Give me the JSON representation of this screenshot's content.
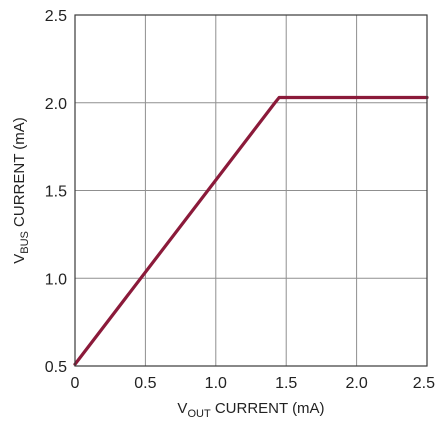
{
  "chart_data": {
    "type": "line",
    "title": "",
    "xlabel": {
      "prefix": "V",
      "subscript": "OUT",
      "suffix": " CURRENT (mA)"
    },
    "ylabel": {
      "prefix": "V",
      "subscript": "BUS",
      "suffix": " CURRENT (mA)"
    },
    "xlim": [
      0,
      2.5
    ],
    "ylim": [
      0.5,
      2.5
    ],
    "x_ticks": [
      0,
      0.5,
      1.0,
      1.5,
      2.0,
      2.5
    ],
    "x_tick_labels": [
      "0",
      "0.5",
      "1.0",
      "1.5",
      "2.0",
      "2.5"
    ],
    "y_ticks": [
      0.5,
      1.0,
      1.5,
      2.0,
      2.5
    ],
    "y_tick_labels": [
      "0.5",
      "1.0",
      "1.5",
      "2.0",
      "2.5"
    ],
    "grid": true,
    "series": [
      {
        "color": "#8b1a3a",
        "points": [
          {
            "x": 0,
            "y": 0.51
          },
          {
            "x": 1.42,
            "y": 2.0
          },
          {
            "x": 1.45,
            "y": 2.03
          },
          {
            "x": 2.5,
            "y": 2.03
          }
        ]
      }
    ]
  }
}
